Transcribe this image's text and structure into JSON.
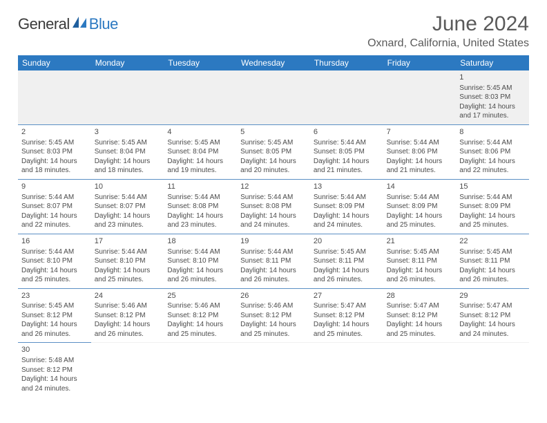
{
  "logo": {
    "word1": "General",
    "word2": "Blue"
  },
  "title": "June 2024",
  "location": "Oxnard, California, United States",
  "colors": {
    "header_bg": "#2c79c1",
    "header_text": "#ffffff",
    "accent": "#5a8fc4",
    "text": "#4a4a4a",
    "first_row_bg": "#f0f0f0"
  },
  "dayNames": [
    "Sunday",
    "Monday",
    "Tuesday",
    "Wednesday",
    "Thursday",
    "Friday",
    "Saturday"
  ],
  "labels": {
    "sunrise": "Sunrise:",
    "sunset": "Sunset:",
    "daylight": "Daylight:"
  },
  "weeks": [
    [
      null,
      null,
      null,
      null,
      null,
      null,
      {
        "d": "1",
        "rise": "5:45 AM",
        "set": "8:03 PM",
        "dl1": "14 hours",
        "dl2": "and 17 minutes."
      }
    ],
    [
      {
        "d": "2",
        "rise": "5:45 AM",
        "set": "8:03 PM",
        "dl1": "14 hours",
        "dl2": "and 18 minutes."
      },
      {
        "d": "3",
        "rise": "5:45 AM",
        "set": "8:04 PM",
        "dl1": "14 hours",
        "dl2": "and 18 minutes."
      },
      {
        "d": "4",
        "rise": "5:45 AM",
        "set": "8:04 PM",
        "dl1": "14 hours",
        "dl2": "and 19 minutes."
      },
      {
        "d": "5",
        "rise": "5:45 AM",
        "set": "8:05 PM",
        "dl1": "14 hours",
        "dl2": "and 20 minutes."
      },
      {
        "d": "6",
        "rise": "5:44 AM",
        "set": "8:05 PM",
        "dl1": "14 hours",
        "dl2": "and 21 minutes."
      },
      {
        "d": "7",
        "rise": "5:44 AM",
        "set": "8:06 PM",
        "dl1": "14 hours",
        "dl2": "and 21 minutes."
      },
      {
        "d": "8",
        "rise": "5:44 AM",
        "set": "8:06 PM",
        "dl1": "14 hours",
        "dl2": "and 22 minutes."
      }
    ],
    [
      {
        "d": "9",
        "rise": "5:44 AM",
        "set": "8:07 PM",
        "dl1": "14 hours",
        "dl2": "and 22 minutes."
      },
      {
        "d": "10",
        "rise": "5:44 AM",
        "set": "8:07 PM",
        "dl1": "14 hours",
        "dl2": "and 23 minutes."
      },
      {
        "d": "11",
        "rise": "5:44 AM",
        "set": "8:08 PM",
        "dl1": "14 hours",
        "dl2": "and 23 minutes."
      },
      {
        "d": "12",
        "rise": "5:44 AM",
        "set": "8:08 PM",
        "dl1": "14 hours",
        "dl2": "and 24 minutes."
      },
      {
        "d": "13",
        "rise": "5:44 AM",
        "set": "8:09 PM",
        "dl1": "14 hours",
        "dl2": "and 24 minutes."
      },
      {
        "d": "14",
        "rise": "5:44 AM",
        "set": "8:09 PM",
        "dl1": "14 hours",
        "dl2": "and 25 minutes."
      },
      {
        "d": "15",
        "rise": "5:44 AM",
        "set": "8:09 PM",
        "dl1": "14 hours",
        "dl2": "and 25 minutes."
      }
    ],
    [
      {
        "d": "16",
        "rise": "5:44 AM",
        "set": "8:10 PM",
        "dl1": "14 hours",
        "dl2": "and 25 minutes."
      },
      {
        "d": "17",
        "rise": "5:44 AM",
        "set": "8:10 PM",
        "dl1": "14 hours",
        "dl2": "and 25 minutes."
      },
      {
        "d": "18",
        "rise": "5:44 AM",
        "set": "8:10 PM",
        "dl1": "14 hours",
        "dl2": "and 26 minutes."
      },
      {
        "d": "19",
        "rise": "5:44 AM",
        "set": "8:11 PM",
        "dl1": "14 hours",
        "dl2": "and 26 minutes."
      },
      {
        "d": "20",
        "rise": "5:45 AM",
        "set": "8:11 PM",
        "dl1": "14 hours",
        "dl2": "and 26 minutes."
      },
      {
        "d": "21",
        "rise": "5:45 AM",
        "set": "8:11 PM",
        "dl1": "14 hours",
        "dl2": "and 26 minutes."
      },
      {
        "d": "22",
        "rise": "5:45 AM",
        "set": "8:11 PM",
        "dl1": "14 hours",
        "dl2": "and 26 minutes."
      }
    ],
    [
      {
        "d": "23",
        "rise": "5:45 AM",
        "set": "8:12 PM",
        "dl1": "14 hours",
        "dl2": "and 26 minutes."
      },
      {
        "d": "24",
        "rise": "5:46 AM",
        "set": "8:12 PM",
        "dl1": "14 hours",
        "dl2": "and 26 minutes."
      },
      {
        "d": "25",
        "rise": "5:46 AM",
        "set": "8:12 PM",
        "dl1": "14 hours",
        "dl2": "and 25 minutes."
      },
      {
        "d": "26",
        "rise": "5:46 AM",
        "set": "8:12 PM",
        "dl1": "14 hours",
        "dl2": "and 25 minutes."
      },
      {
        "d": "27",
        "rise": "5:47 AM",
        "set": "8:12 PM",
        "dl1": "14 hours",
        "dl2": "and 25 minutes."
      },
      {
        "d": "28",
        "rise": "5:47 AM",
        "set": "8:12 PM",
        "dl1": "14 hours",
        "dl2": "and 25 minutes."
      },
      {
        "d": "29",
        "rise": "5:47 AM",
        "set": "8:12 PM",
        "dl1": "14 hours",
        "dl2": "and 24 minutes."
      }
    ],
    [
      {
        "d": "30",
        "rise": "5:48 AM",
        "set": "8:12 PM",
        "dl1": "14 hours",
        "dl2": "and 24 minutes."
      },
      null,
      null,
      null,
      null,
      null,
      null
    ]
  ]
}
